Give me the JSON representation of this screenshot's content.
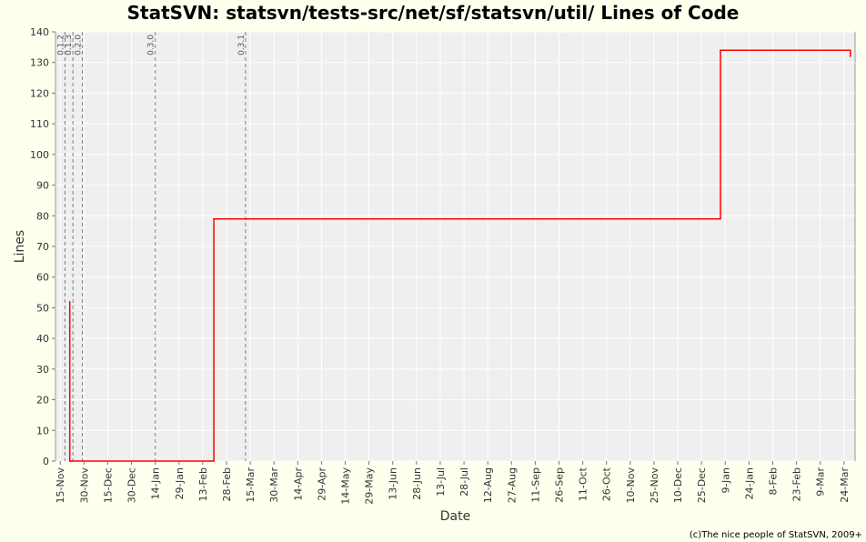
{
  "page": {
    "title": "StatSVN: statsvn/tests-src/net/sf/statsvn/util/ Lines of Code",
    "footer": "(c)The nice people of StatSVN, 2009+"
  },
  "colors": {
    "background": "#ffffee",
    "plot_background": "#efefef",
    "series_line": "#ff0000",
    "marker_line": "#808080"
  },
  "chart_data": {
    "type": "line",
    "title": "StatSVN: statsvn/tests-src/net/sf/statsvn/util/ Lines of Code",
    "xlabel": "Date",
    "ylabel": "Lines",
    "x_range": [
      "2006-11-12",
      "2008-03-31"
    ],
    "ylim": [
      0,
      140
    ],
    "y_ticks": [
      0,
      10,
      20,
      30,
      40,
      50,
      60,
      70,
      80,
      90,
      100,
      110,
      120,
      130,
      140
    ],
    "x_tick_labels": [
      "15-Nov",
      "30-Nov",
      "15-Dec",
      "30-Dec",
      "14-Jan",
      "29-Jan",
      "13-Feb",
      "28-Feb",
      "15-Mar",
      "30-Mar",
      "14-Apr",
      "29-Apr",
      "14-May",
      "29-May",
      "13-Jun",
      "28-Jun",
      "13-Jul",
      "28-Jul",
      "12-Aug",
      "27-Aug",
      "11-Sep",
      "26-Sep",
      "11-Oct",
      "26-Oct",
      "10-Nov",
      "25-Nov",
      "10-Dec",
      "25-Dec",
      "9-Jan",
      "24-Jan",
      "8-Feb",
      "23-Feb",
      "9-Mar",
      "24-Mar"
    ],
    "x_tick_dates": [
      "2006-11-15",
      "2006-11-30",
      "2006-12-15",
      "2006-12-30",
      "2007-01-14",
      "2007-01-29",
      "2007-02-13",
      "2007-02-28",
      "2007-03-15",
      "2007-03-30",
      "2007-04-14",
      "2007-04-29",
      "2007-05-14",
      "2007-05-29",
      "2007-06-13",
      "2007-06-28",
      "2007-07-13",
      "2007-07-28",
      "2007-08-12",
      "2007-08-27",
      "2007-09-11",
      "2007-09-26",
      "2007-10-11",
      "2007-10-26",
      "2007-11-10",
      "2007-11-25",
      "2007-12-10",
      "2007-12-25",
      "2008-01-09",
      "2008-01-24",
      "2008-02-08",
      "2008-02-23",
      "2008-03-09",
      "2008-03-24"
    ],
    "grid": true,
    "series": [
      {
        "points": [
          {
            "x": "2006-11-21",
            "y": 52
          },
          {
            "x": "2006-11-21",
            "y": 49
          },
          {
            "x": "2006-11-21",
            "y": 0
          },
          {
            "x": "2007-02-20",
            "y": 0
          },
          {
            "x": "2007-02-20",
            "y": 79
          },
          {
            "x": "2008-01-06",
            "y": 79
          },
          {
            "x": "2008-01-06",
            "y": 134
          },
          {
            "x": "2008-03-28",
            "y": 134
          },
          {
            "x": "2008-03-28",
            "y": 132
          }
        ]
      }
    ],
    "version_markers": [
      {
        "label": "0.1.2",
        "x": "2006-11-18"
      },
      {
        "label": "0.1.3",
        "x": "2006-11-23"
      },
      {
        "label": "0.2.0",
        "x": "2006-11-29"
      },
      {
        "label": "0.3.0",
        "x": "2007-01-14"
      },
      {
        "label": "0.3.1",
        "x": "2007-03-12"
      }
    ]
  }
}
